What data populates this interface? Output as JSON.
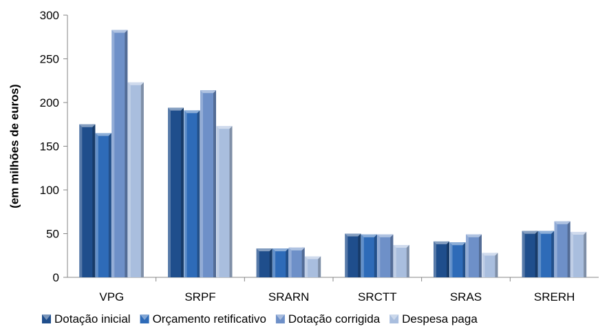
{
  "chart_data": {
    "type": "bar",
    "ylabel": "(em milhões de euros)",
    "ylim": [
      0,
      300
    ],
    "yticks": [
      0,
      50,
      100,
      150,
      200,
      250,
      300
    ],
    "grid": false,
    "legend_position": "bottom",
    "categories": [
      "VPG",
      "SRPF",
      "SRARN",
      "SRCTT",
      "SRAS",
      "SRERH"
    ],
    "series": [
      {
        "name": "Dotação inicial",
        "color": "#1F4E8C",
        "values": [
          175,
          194,
          33,
          50,
          41,
          53
        ]
      },
      {
        "name": "Orçamento retificativo",
        "color": "#2E6BB8",
        "values": [
          165,
          191,
          33,
          49,
          40,
          53
        ]
      },
      {
        "name": "Dotação corrigida",
        "color": "#6E90C8",
        "values": [
          283,
          214,
          34,
          49,
          49,
          64
        ]
      },
      {
        "name": "Despesa paga",
        "color": "#A9BEDE",
        "values": [
          223,
          173,
          24,
          37,
          28,
          52
        ]
      }
    ]
  }
}
